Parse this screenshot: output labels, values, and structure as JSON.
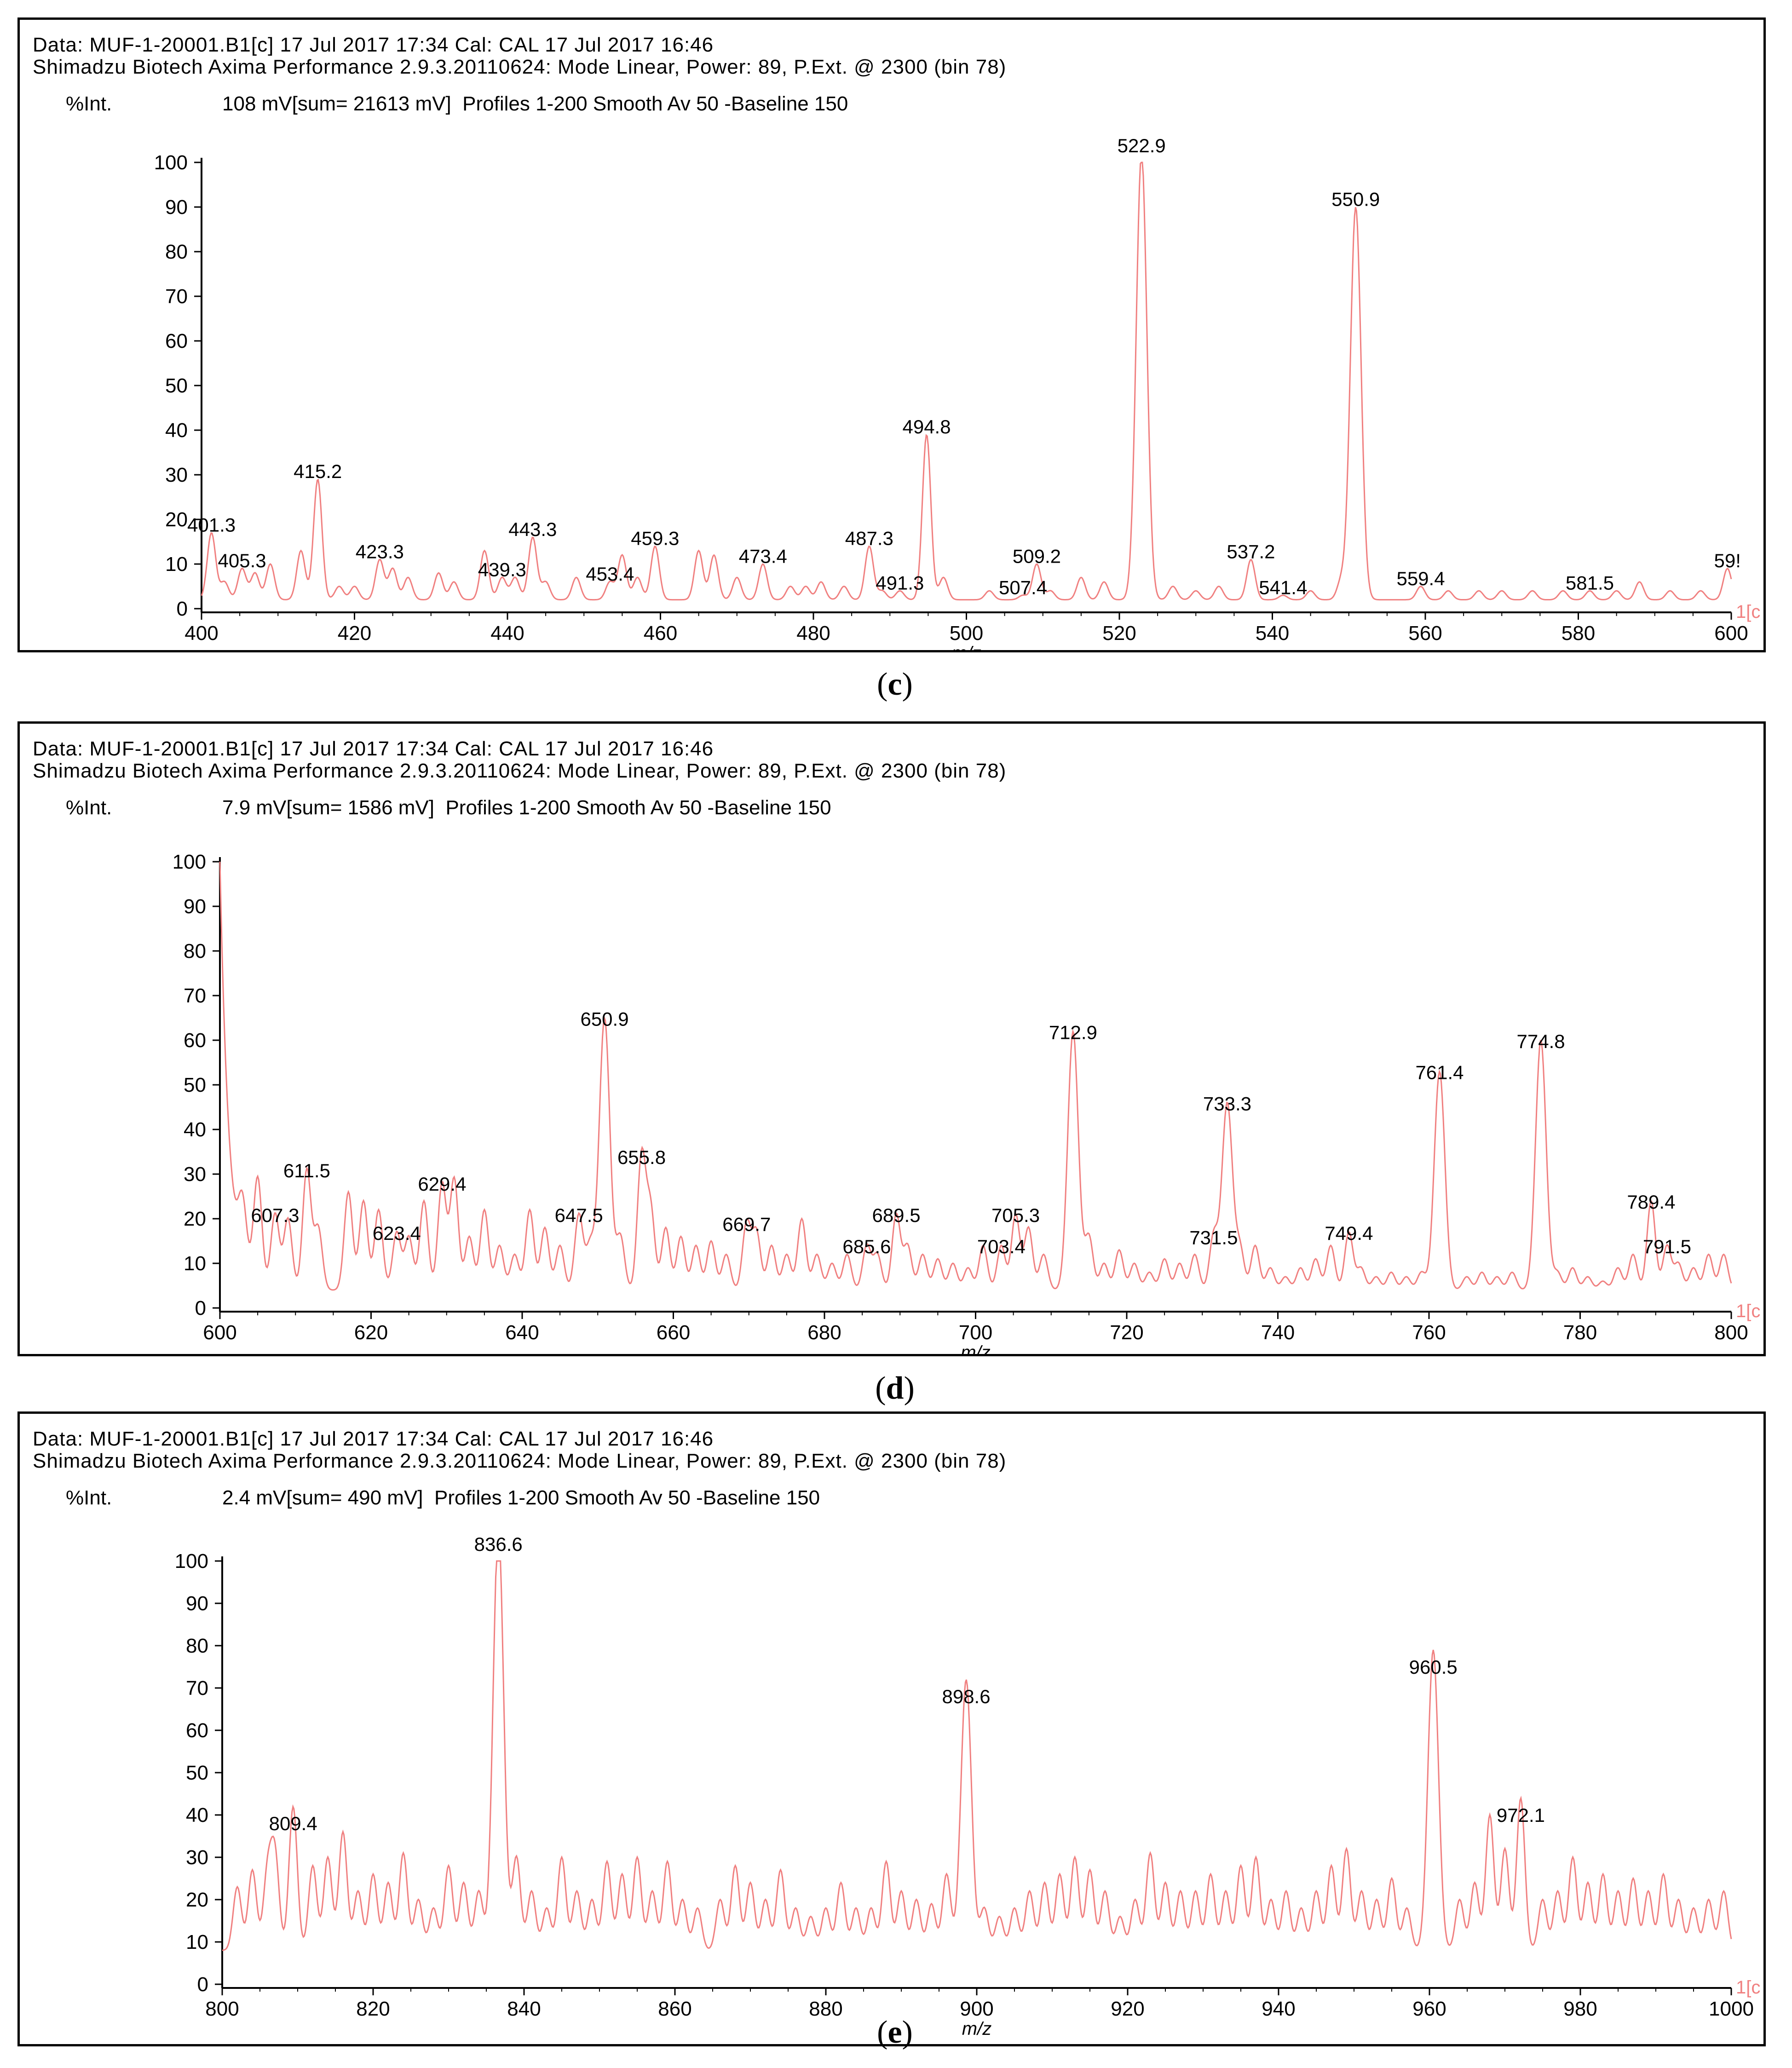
{
  "colors": {
    "trace": "#f08080",
    "axis": "#000000",
    "frame": "#000000"
  },
  "panels": [
    {
      "id": "c",
      "caption": "c",
      "header_line1": "Data: MUF-1-20001.B1[c] 17 Jul 2017 17:34 Cal: CAL 17 Jul 2017 16:46",
      "header_line2": "Shimadzu Biotech Axima Performance 2.9.3.20110624: Mode Linear, Power: 89, P.Ext. @ 2300 (bin 78)",
      "int_label": "%Int.",
      "int_info": "108 mV[sum= 21613 mV]  Profiles 1-200 Smooth Av 50 -Baseline 150",
      "xlabel": "m/z",
      "edge_text": "1[c",
      "chart_data": {
        "type": "line",
        "xlim": [
          400,
          600
        ],
        "ylim": [
          0,
          100
        ],
        "xticks": [
          400,
          420,
          440,
          460,
          480,
          500,
          520,
          540,
          560,
          580,
          600
        ],
        "yticks": [
          0,
          10,
          20,
          30,
          40,
          50,
          60,
          70,
          80,
          90,
          100
        ],
        "baseline": 2,
        "peaks": [
          {
            "x": 401.3,
            "y": 15,
            "label": "401.3"
          },
          {
            "x": 405.3,
            "y": 7,
            "label": "405.3"
          },
          {
            "x": 415.2,
            "y": 27,
            "label": "415.2"
          },
          {
            "x": 423.3,
            "y": 9,
            "label": "423.3"
          },
          {
            "x": 439.3,
            "y": 5,
            "label": "439.3"
          },
          {
            "x": 443.3,
            "y": 14,
            "label": "443.3"
          },
          {
            "x": 453.4,
            "y": 4,
            "label": "453.4"
          },
          {
            "x": 459.3,
            "y": 12,
            "label": "459.3"
          },
          {
            "x": 473.4,
            "y": 8,
            "label": "473.4"
          },
          {
            "x": 487.3,
            "y": 12,
            "label": "487.3"
          },
          {
            "x": 491.3,
            "y": 2,
            "label": "491.3"
          },
          {
            "x": 494.8,
            "y": 37,
            "label": "494.8"
          },
          {
            "x": 507.4,
            "y": 1,
            "label": "507.4"
          },
          {
            "x": 509.2,
            "y": 8,
            "label": "509.2"
          },
          {
            "x": 522.9,
            "y": 100,
            "label": "522.9"
          },
          {
            "x": 537.2,
            "y": 9,
            "label": "537.2"
          },
          {
            "x": 541.4,
            "y": 1,
            "label": "541.4"
          },
          {
            "x": 550.9,
            "y": 88,
            "label": "550.9"
          },
          {
            "x": 559.4,
            "y": 3,
            "label": "559.4"
          },
          {
            "x": 581.5,
            "y": 2,
            "label": "581.5"
          },
          {
            "x": 599.5,
            "y": 7,
            "label": "59!"
          }
        ],
        "minor_peaks": [
          [
            403,
            4
          ],
          [
            407,
            6
          ],
          [
            409,
            8
          ],
          [
            413,
            11
          ],
          [
            418,
            3
          ],
          [
            420,
            3
          ],
          [
            425,
            7
          ],
          [
            427,
            5
          ],
          [
            431,
            6
          ],
          [
            433,
            4
          ],
          [
            437,
            11
          ],
          [
            441,
            5
          ],
          [
            445,
            4
          ],
          [
            449,
            5
          ],
          [
            455,
            10
          ],
          [
            457,
            5
          ],
          [
            465,
            11
          ],
          [
            467,
            10
          ],
          [
            470,
            5
          ],
          [
            477,
            3
          ],
          [
            479,
            3
          ],
          [
            481,
            4
          ],
          [
            484,
            3
          ],
          [
            489,
            2
          ],
          [
            497,
            5
          ],
          [
            503,
            2
          ],
          [
            511,
            2
          ],
          [
            515,
            5
          ],
          [
            518,
            4
          ],
          [
            527,
            3
          ],
          [
            530,
            2
          ],
          [
            533,
            3
          ],
          [
            545,
            2
          ],
          [
            549,
            4
          ],
          [
            563,
            2
          ],
          [
            567,
            2
          ],
          [
            570,
            2
          ],
          [
            574,
            2
          ],
          [
            578,
            2
          ],
          [
            585,
            2
          ],
          [
            588,
            4
          ],
          [
            592,
            2
          ],
          [
            596,
            2
          ]
        ]
      }
    },
    {
      "id": "d",
      "caption": "d",
      "header_line1": "Data: MUF-1-20001.B1[c] 17 Jul 2017 17:34 Cal: CAL 17 Jul 2017 16:46",
      "header_line2": "Shimadzu Biotech Axima Performance 2.9.3.20110624: Mode Linear, Power: 89, P.Ext. @ 2300 (bin 78)",
      "int_label": "%Int.",
      "int_info": "7.9 mV[sum= 1586 mV]  Profiles 1-200 Smooth Av 50 -Baseline 150",
      "xlabel": "m/z",
      "edge_text": "1[c",
      "chart_data": {
        "type": "line",
        "xlim": [
          600,
          800
        ],
        "ylim": [
          0,
          100
        ],
        "xticks": [
          600,
          620,
          640,
          660,
          680,
          700,
          720,
          740,
          760,
          780,
          800
        ],
        "yticks": [
          0,
          10,
          20,
          30,
          40,
          50,
          60,
          70,
          80,
          90,
          100
        ],
        "baseline": 4,
        "start_value": 100,
        "peaks": [
          {
            "x": 607.3,
            "y": 17,
            "label": "607.3"
          },
          {
            "x": 611.5,
            "y": 27,
            "label": "611.5"
          },
          {
            "x": 623.4,
            "y": 13,
            "label": "623.4"
          },
          {
            "x": 629.4,
            "y": 24,
            "label": "629.4"
          },
          {
            "x": 647.5,
            "y": 17,
            "label": "647.5"
          },
          {
            "x": 650.9,
            "y": 61,
            "label": "650.9"
          },
          {
            "x": 655.8,
            "y": 30,
            "label": "655.8"
          },
          {
            "x": 669.7,
            "y": 15,
            "label": "669.7"
          },
          {
            "x": 685.6,
            "y": 10,
            "label": "685.6"
          },
          {
            "x": 689.5,
            "y": 17,
            "label": "689.5"
          },
          {
            "x": 703.4,
            "y": 10,
            "label": "703.4"
          },
          {
            "x": 705.3,
            "y": 17,
            "label": "705.3"
          },
          {
            "x": 712.9,
            "y": 58,
            "label": "712.9"
          },
          {
            "x": 731.5,
            "y": 12,
            "label": "731.5"
          },
          {
            "x": 733.3,
            "y": 42,
            "label": "733.3"
          },
          {
            "x": 749.4,
            "y": 13,
            "label": "749.4"
          },
          {
            "x": 761.4,
            "y": 49,
            "label": "761.4"
          },
          {
            "x": 774.8,
            "y": 56,
            "label": "774.8"
          },
          {
            "x": 789.4,
            "y": 20,
            "label": "789.4"
          },
          {
            "x": 791.5,
            "y": 10,
            "label": "791.5"
          }
        ],
        "minor_peaks": [
          [
            603,
            14
          ],
          [
            605,
            24
          ],
          [
            609,
            16
          ],
          [
            613,
            14
          ],
          [
            617,
            22
          ],
          [
            619,
            20
          ],
          [
            621,
            18
          ],
          [
            625,
            12
          ],
          [
            627,
            20
          ],
          [
            631,
            25
          ],
          [
            633,
            12
          ],
          [
            635,
            18
          ],
          [
            637,
            10
          ],
          [
            639,
            8
          ],
          [
            641,
            18
          ],
          [
            643,
            14
          ],
          [
            645,
            10
          ],
          [
            649,
            10
          ],
          [
            653,
            12
          ],
          [
            657,
            18
          ],
          [
            659,
            14
          ],
          [
            661,
            12
          ],
          [
            663,
            10
          ],
          [
            665,
            11
          ],
          [
            667,
            8
          ],
          [
            671,
            13
          ],
          [
            673,
            10
          ],
          [
            675,
            8
          ],
          [
            677,
            16
          ],
          [
            679,
            8
          ],
          [
            681,
            6
          ],
          [
            683,
            8
          ],
          [
            687,
            8
          ],
          [
            691,
            10
          ],
          [
            693,
            8
          ],
          [
            695,
            7
          ],
          [
            697,
            6
          ],
          [
            699,
            5
          ],
          [
            701,
            10
          ],
          [
            707,
            14
          ],
          [
            709,
            8
          ],
          [
            715,
            12
          ],
          [
            717,
            6
          ],
          [
            719,
            9
          ],
          [
            721,
            6
          ],
          [
            723,
            4
          ],
          [
            725,
            7
          ],
          [
            727,
            6
          ],
          [
            729,
            8
          ],
          [
            735,
            9
          ],
          [
            737,
            10
          ],
          [
            739,
            5
          ],
          [
            741,
            3
          ],
          [
            743,
            5
          ],
          [
            745,
            7
          ],
          [
            747,
            10
          ],
          [
            751,
            5
          ],
          [
            753,
            3
          ],
          [
            755,
            4
          ],
          [
            757,
            3
          ],
          [
            759,
            4
          ],
          [
            765,
            3
          ],
          [
            767,
            4
          ],
          [
            769,
            3
          ],
          [
            771,
            4
          ],
          [
            777,
            4
          ],
          [
            779,
            5
          ],
          [
            781,
            3
          ],
          [
            783,
            2
          ],
          [
            785,
            5
          ],
          [
            787,
            8
          ],
          [
            793,
            6
          ],
          [
            795,
            5
          ],
          [
            797,
            8
          ],
          [
            799,
            8
          ]
        ]
      }
    },
    {
      "id": "e",
      "caption": "e",
      "header_line1": "Data: MUF-1-20001.B1[c] 17 Jul 2017 17:34 Cal: CAL 17 Jul 2017 16:46",
      "header_line2": "Shimadzu Biotech Axima Performance 2.9.3.20110624: Mode Linear, Power: 89, P.Ext. @ 2300 (bin 78)",
      "int_label": "%Int.",
      "int_info": "2.4 mV[sum= 490 mV]  Profiles 1-200 Smooth Av 50 -Baseline 150",
      "xlabel": "m/z",
      "edge_text": "1[c",
      "chart_data": {
        "type": "line",
        "xlim": [
          800,
          1000
        ],
        "ylim": [
          0,
          100
        ],
        "xticks": [
          800,
          820,
          840,
          860,
          880,
          900,
          920,
          940,
          960,
          980,
          1000
        ],
        "yticks": [
          0,
          10,
          20,
          30,
          40,
          50,
          60,
          70,
          80,
          90,
          100
        ],
        "baseline": 8,
        "peaks": [
          {
            "x": 809.4,
            "y": 34,
            "label": "809.4"
          },
          {
            "x": 836.6,
            "y": 100,
            "label": "836.6"
          },
          {
            "x": 898.6,
            "y": 64,
            "label": "898.6"
          },
          {
            "x": 960.5,
            "y": 71,
            "label": "960.5"
          },
          {
            "x": 972.1,
            "y": 36,
            "label": "972.1"
          }
        ],
        "minor_peaks": [
          [
            802,
            15
          ],
          [
            804,
            19
          ],
          [
            806,
            18
          ],
          [
            807,
            22
          ],
          [
            812,
            20
          ],
          [
            814,
            22
          ],
          [
            816,
            28
          ],
          [
            818,
            14
          ],
          [
            820,
            18
          ],
          [
            822,
            16
          ],
          [
            824,
            23
          ],
          [
            826,
            12
          ],
          [
            828,
            10
          ],
          [
            830,
            20
          ],
          [
            832,
            16
          ],
          [
            834,
            14
          ],
          [
            839,
            22
          ],
          [
            841,
            14
          ],
          [
            843,
            10
          ],
          [
            845,
            22
          ],
          [
            847,
            14
          ],
          [
            849,
            12
          ],
          [
            851,
            21
          ],
          [
            853,
            18
          ],
          [
            855,
            22
          ],
          [
            857,
            14
          ],
          [
            859,
            21
          ],
          [
            861,
            12
          ],
          [
            863,
            10
          ],
          [
            866,
            12
          ],
          [
            868,
            20
          ],
          [
            870,
            16
          ],
          [
            872,
            12
          ],
          [
            874,
            19
          ],
          [
            876,
            10
          ],
          [
            878,
            8
          ],
          [
            880,
            10
          ],
          [
            882,
            16
          ],
          [
            884,
            10
          ],
          [
            886,
            10
          ],
          [
            888,
            21
          ],
          [
            890,
            14
          ],
          [
            892,
            12
          ],
          [
            894,
            11
          ],
          [
            896,
            18
          ],
          [
            901,
            10
          ],
          [
            903,
            8
          ],
          [
            905,
            10
          ],
          [
            907,
            14
          ],
          [
            909,
            16
          ],
          [
            911,
            18
          ],
          [
            913,
            22
          ],
          [
            915,
            19
          ],
          [
            917,
            14
          ],
          [
            919,
            8
          ],
          [
            921,
            12
          ],
          [
            923,
            23
          ],
          [
            925,
            16
          ],
          [
            927,
            14
          ],
          [
            929,
            14
          ],
          [
            931,
            18
          ],
          [
            933,
            14
          ],
          [
            935,
            20
          ],
          [
            937,
            22
          ],
          [
            939,
            12
          ],
          [
            941,
            14
          ],
          [
            943,
            10
          ],
          [
            945,
            14
          ],
          [
            947,
            20
          ],
          [
            949,
            24
          ],
          [
            951,
            14
          ],
          [
            953,
            12
          ],
          [
            955,
            17
          ],
          [
            957,
            10
          ],
          [
            964,
            12
          ],
          [
            966,
            16
          ],
          [
            968,
            32
          ],
          [
            970,
            24
          ],
          [
            975,
            12
          ],
          [
            977,
            14
          ],
          [
            979,
            22
          ],
          [
            981,
            16
          ],
          [
            983,
            18
          ],
          [
            985,
            14
          ],
          [
            987,
            17
          ],
          [
            989,
            14
          ],
          [
            991,
            18
          ],
          [
            993,
            12
          ],
          [
            995,
            10
          ],
          [
            997,
            12
          ],
          [
            999,
            14
          ]
        ]
      }
    }
  ]
}
